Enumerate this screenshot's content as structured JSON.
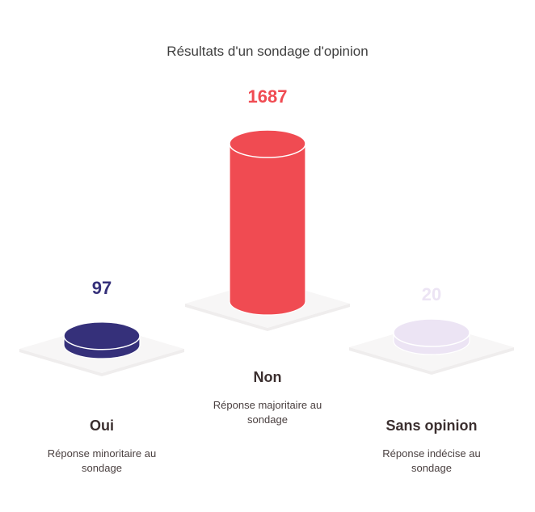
{
  "chart_data": {
    "type": "bar",
    "title": "Résultats d'un sondage d'opinion",
    "categories": [
      "Oui",
      "Non",
      "Sans opinion"
    ],
    "values": [
      97,
      1687,
      20
    ],
    "descriptions": [
      [
        "Réponse minoritaire au",
        "sondage"
      ],
      [
        "Réponse majoritaire au",
        "sondage"
      ],
      [
        "Réponse indécise au",
        "sondage"
      ]
    ],
    "colors": [
      "#35307a",
      "#f04b52",
      "#ece4f4"
    ],
    "value_label_colors": [
      "#35307a",
      "#f04b52",
      "#ece4f4"
    ],
    "xlabel": "",
    "ylabel": "",
    "legend": "none",
    "grid": false
  }
}
